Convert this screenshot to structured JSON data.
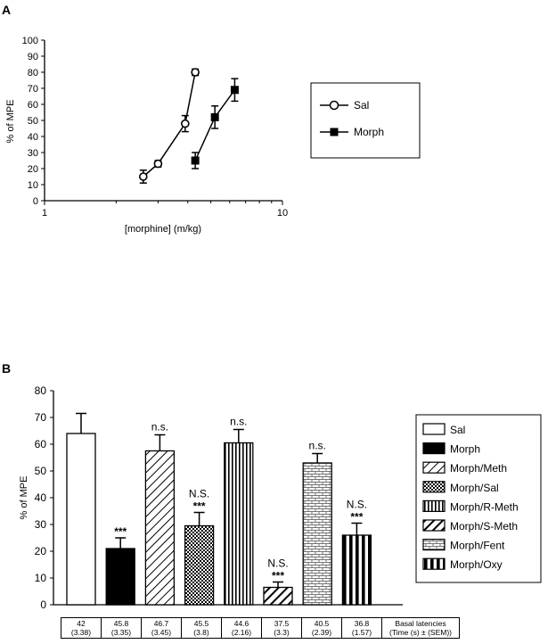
{
  "panel_a": {
    "label": "A",
    "legend": {
      "sal": "Sal",
      "morph": "Morph"
    }
  },
  "panel_b": {
    "label": "B",
    "legend": [
      "Sal",
      "Morph",
      "Morph/Meth",
      "Morph/Sal",
      "Morph/R-Meth",
      "Morph/S-Meth",
      "Morph/Fent",
      "Morph/Oxy"
    ]
  },
  "table": {
    "cells": [
      {
        "mean": "42",
        "sem": "(3.38)"
      },
      {
        "mean": "45.8",
        "sem": "(3.35)"
      },
      {
        "mean": "46.7",
        "sem": "(3.45)"
      },
      {
        "mean": "45.5",
        "sem": "(3.8)"
      },
      {
        "mean": "44.6",
        "sem": "(2.16)"
      },
      {
        "mean": "37.5",
        "sem": "(3.3)"
      },
      {
        "mean": "40.5",
        "sem": "(2.39)"
      },
      {
        "mean": "36.8",
        "sem": "(1.57)"
      }
    ],
    "header_line1": "Basal latencies",
    "header_line2": "(Time (s) ± (SEM))"
  },
  "chart_data": [
    {
      "type": "line",
      "xscale": "log",
      "xlim": [
        1,
        10
      ],
      "ylim": [
        0,
        100
      ],
      "xlabel": "[morphine] (m/kg)",
      "ylabel": "% of MPE",
      "xticks": [
        "1",
        "10"
      ],
      "yticks": [
        0,
        10,
        20,
        30,
        40,
        50,
        60,
        70,
        80,
        90,
        100
      ],
      "legend_position": "right",
      "series": [
        {
          "name": "Sal",
          "marker": "open-circle",
          "x": [
            2.6,
            3.0,
            3.9,
            4.3
          ],
          "y": [
            15,
            23,
            48,
            80
          ],
          "err": [
            4,
            2,
            5,
            2
          ]
        },
        {
          "name": "Morph",
          "marker": "filled-square",
          "x": [
            4.3,
            5.2,
            6.3
          ],
          "y": [
            25,
            52,
            69
          ],
          "err": [
            5,
            7,
            7
          ]
        }
      ]
    },
    {
      "type": "bar",
      "ylabel": "% of MPE",
      "ylim": [
        0,
        80
      ],
      "yticks": [
        0,
        10,
        20,
        30,
        40,
        50,
        60,
        70,
        80
      ],
      "legend_position": "right",
      "categories": [
        "Sal",
        "Morph",
        "Morph/Meth",
        "Morph/Sal",
        "Morph/R-Meth",
        "Morph/S-Meth",
        "Morph/Fent",
        "Morph/Oxy"
      ],
      "values": [
        64,
        21,
        57.5,
        29.5,
        60.5,
        6.5,
        53,
        26
      ],
      "errors": [
        7.5,
        4,
        6,
        5,
        5,
        2,
        3.5,
        4.5
      ],
      "annotations": [
        "",
        "***",
        "n.s.",
        "N.S.|***",
        "n.s.",
        "N.S.|***",
        "n.s.",
        "N.S.|***"
      ],
      "patterns": [
        "white",
        "black",
        "diagonal",
        "checker",
        "vertical",
        "diagonal-thick",
        "brick",
        "vertical-thick"
      ]
    }
  ]
}
